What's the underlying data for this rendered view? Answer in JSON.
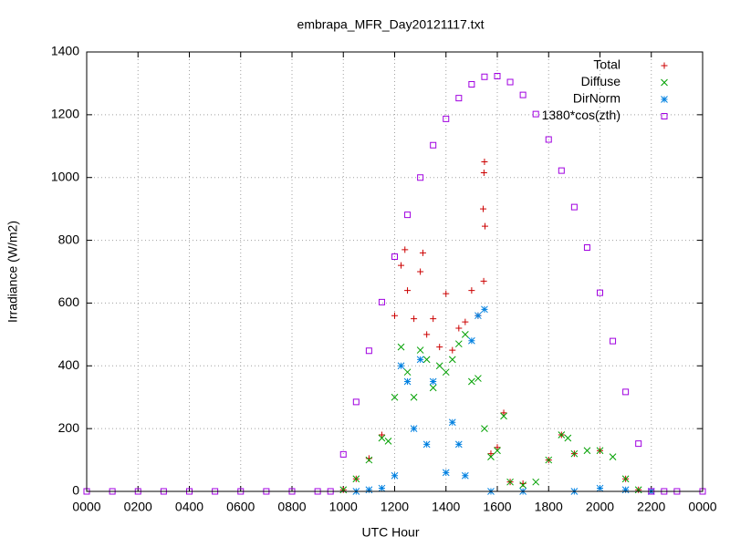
{
  "chart_data": {
    "type": "scatter",
    "title": "embrapa_MFR_Day20121117.txt",
    "x_label": "UTC Hour",
    "y_label": "Irradiance (W/m2)",
    "xlim": [
      0,
      24
    ],
    "ylim": [
      0,
      1400
    ],
    "xticks": [
      {
        "value": 0,
        "label": "0000"
      },
      {
        "value": 2,
        "label": "0200"
      },
      {
        "value": 4,
        "label": "0400"
      },
      {
        "value": 6,
        "label": "0600"
      },
      {
        "value": 8,
        "label": "0800"
      },
      {
        "value": 10,
        "label": "1000"
      },
      {
        "value": 12,
        "label": "1200"
      },
      {
        "value": 14,
        "label": "1400"
      },
      {
        "value": 16,
        "label": "1600"
      },
      {
        "value": 18,
        "label": "1800"
      },
      {
        "value": 20,
        "label": "2000"
      },
      {
        "value": 22,
        "label": "2200"
      },
      {
        "value": 24,
        "label": "0000"
      }
    ],
    "yticks": [
      0,
      200,
      400,
      600,
      800,
      1000,
      1200,
      1400
    ],
    "grid": true,
    "legend": "top-right",
    "series": [
      {
        "name": "Total",
        "color": "#cc0000",
        "marker": "plus",
        "x": [
          10,
          10.5,
          11,
          11.5,
          12,
          12.25,
          12.4,
          12.5,
          12.75,
          13,
          13.1,
          13.25,
          13.5,
          13.75,
          14,
          14.25,
          14.5,
          14.75,
          15,
          15.25,
          15.45,
          15.47,
          15.48,
          15.5,
          15.52,
          15.75,
          16,
          16.25,
          16.5,
          17,
          18,
          18.5,
          19,
          20,
          21,
          21.5
        ],
        "values": [
          5,
          40,
          105,
          180,
          560,
          720,
          770,
          640,
          550,
          700,
          760,
          500,
          550,
          460,
          630,
          450,
          520,
          540,
          640,
          560,
          900,
          670,
          1015,
          1050,
          845,
          120,
          140,
          250,
          30,
          25,
          100,
          180,
          120,
          130,
          40,
          5
        ]
      },
      {
        "name": "Diffuse",
        "color": "#00a000",
        "marker": "cross",
        "x": [
          10,
          10.5,
          11,
          11.5,
          11.75,
          12,
          12.25,
          12.5,
          12.75,
          13,
          13.25,
          13.5,
          13.75,
          14,
          14.25,
          14.5,
          14.75,
          15,
          15.25,
          15.5,
          15.75,
          16,
          16.25,
          16.5,
          17,
          17.5,
          18,
          18.5,
          18.75,
          19,
          19.5,
          20,
          20.5,
          21,
          21.5
        ],
        "values": [
          5,
          40,
          100,
          170,
          160,
          300,
          460,
          380,
          300,
          450,
          420,
          330,
          400,
          380,
          420,
          470,
          500,
          350,
          360,
          200,
          110,
          130,
          240,
          30,
          20,
          30,
          100,
          180,
          170,
          120,
          130,
          130,
          110,
          40,
          5
        ]
      },
      {
        "name": "DirNorm",
        "color": "#0080e0",
        "marker": "star",
        "x": [
          10.5,
          11,
          11.5,
          12,
          12.25,
          12.5,
          12.75,
          13,
          13.25,
          13.5,
          14,
          14.25,
          14.5,
          14.75,
          15,
          15.25,
          15.5,
          15.75,
          17,
          19,
          20,
          21,
          22
        ],
        "values": [
          0,
          5,
          10,
          50,
          400,
          350,
          200,
          420,
          150,
          350,
          60,
          220,
          150,
          50,
          480,
          560,
          580,
          0,
          0,
          0,
          10,
          5,
          0
        ]
      },
      {
        "name": "1380*cos(zth)",
        "color": "#a000e0",
        "marker": "square",
        "x": [
          0,
          1,
          2,
          3,
          4,
          5,
          6,
          7,
          8,
          9,
          9.5,
          10,
          10.5,
          11,
          11.5,
          12,
          12.5,
          13,
          13.5,
          14,
          14.5,
          15,
          15.5,
          16,
          16.5,
          17,
          17.5,
          18,
          18.5,
          19,
          19.5,
          20,
          20.5,
          21,
          21.5,
          22,
          22.5,
          23,
          24
        ],
        "values": [
          0,
          0,
          0,
          0,
          0,
          0,
          0,
          0,
          0,
          0,
          0,
          118,
          285,
          448,
          603,
          748,
          881,
          1000,
          1103,
          1187,
          1253,
          1297,
          1321,
          1323,
          1304,
          1263,
          1202,
          1121,
          1022,
          906,
          777,
          633,
          479,
          317,
          152,
          0,
          0,
          0,
          0
        ]
      }
    ]
  }
}
